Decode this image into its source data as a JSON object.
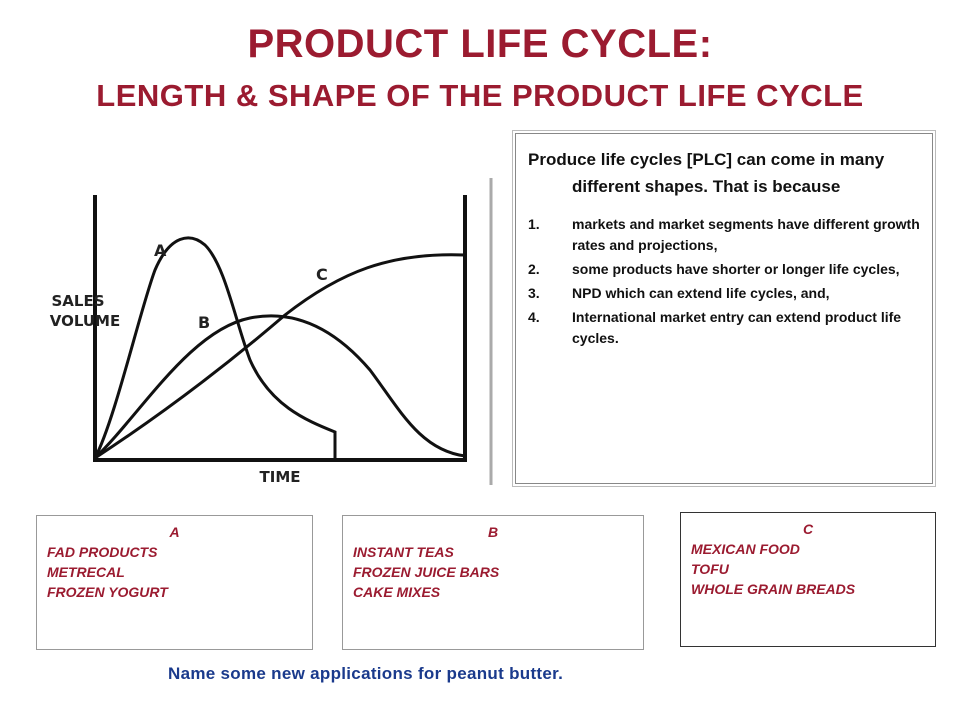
{
  "title": {
    "main": "PRODUCT LIFE CYCLE:",
    "sub": "LENGTH & SHAPE OF THE PRODUCT LIFE CYCLE"
  },
  "diagram": {
    "y_label_line1": "SALES",
    "y_label_line2": "VOLUME",
    "x_label": "TIME",
    "curve_a": "A",
    "curve_b": "B",
    "curve_c": "C"
  },
  "explanation": {
    "intro": "Produce life cycles [PLC] can come in many different shapes.  That is because",
    "reasons": [
      {
        "num": "1.",
        "text": "markets and market segments have different growth rates and projections,"
      },
      {
        "num": "2.",
        "text": "some products have shorter or longer life cycles,"
      },
      {
        "num": "3.",
        "text": "NPD which can extend life cycles, and,"
      },
      {
        "num": "4.",
        "text": "International market entry can extend product life cycles."
      }
    ]
  },
  "examples": {
    "a": {
      "heading": "A",
      "items": [
        "FAD PRODUCTS",
        "METRECAL",
        "FROZEN YOGURT"
      ]
    },
    "b": {
      "heading": "B",
      "items": [
        "INSTANT TEAS",
        "FROZEN JUICE BARS",
        "CAKE MIXES"
      ]
    },
    "c": {
      "heading": "C",
      "items": [
        "MEXICAN FOOD",
        "TOFU",
        "WHOLE GRAIN BREADS"
      ]
    }
  },
  "question": "Name some new applications for peanut butter.",
  "colors": {
    "title": "#9b1b30",
    "examples": "#9b1b30",
    "question": "#1a3a8c"
  }
}
